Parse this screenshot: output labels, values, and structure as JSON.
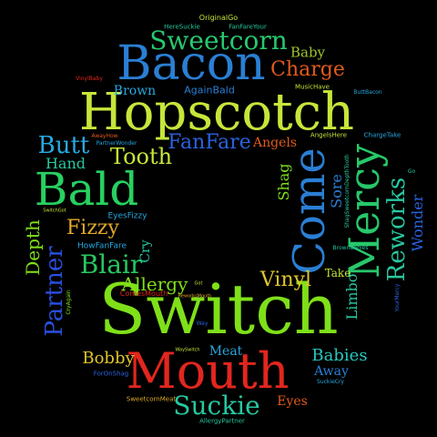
{
  "words": [
    {
      "text": "Switch",
      "color": "#7fe019"
    },
    {
      "text": "Hopscotch",
      "color": "#c6e63a"
    },
    {
      "text": "Mouth",
      "color": "#e2261e"
    },
    {
      "text": "Bacon",
      "color": "#2a7fd4"
    },
    {
      "text": "Bald",
      "color": "#27d160"
    },
    {
      "text": "Come",
      "color": "#2a7fd4"
    },
    {
      "text": "Mercy",
      "color": "#27c86a"
    },
    {
      "text": "Sweetcorn",
      "color": "#27c870"
    },
    {
      "text": "Charge",
      "color": "#e05a1e"
    },
    {
      "text": "Suckie",
      "color": "#27c8a0"
    },
    {
      "text": "Butt",
      "color": "#27a8e0"
    },
    {
      "text": "Tooth",
      "color": "#c6e63a"
    },
    {
      "text": "FanFare",
      "color": "#2a62e0"
    },
    {
      "text": "Reworks",
      "color": "#27c8a0"
    },
    {
      "text": "Partner",
      "color": "#2a4fe0"
    },
    {
      "text": "Blair",
      "color": "#27c860"
    },
    {
      "text": "Vinyl",
      "color": "#e0c62a"
    },
    {
      "text": "Allergy",
      "color": "#7fe019"
    },
    {
      "text": "Fizzy",
      "color": "#e0a82a"
    },
    {
      "text": "Depth",
      "color": "#7fe019"
    },
    {
      "text": "Bobby",
      "color": "#e0c62a"
    },
    {
      "text": "Babies",
      "color": "#27c8c0"
    },
    {
      "text": "Hand",
      "color": "#27c8a0"
    },
    {
      "text": "Brown",
      "color": "#27a8e0"
    },
    {
      "text": "Baby",
      "color": "#a0c62a"
    },
    {
      "text": "Wonder",
      "color": "#2a62e0"
    },
    {
      "text": "Limbo",
      "color": "#27c8a0"
    },
    {
      "text": "Shag",
      "color": "#7fe019"
    },
    {
      "text": "Sore",
      "color": "#2a7fd4"
    },
    {
      "text": "Eyes",
      "color": "#e05a1e"
    },
    {
      "text": "Away",
      "color": "#2a7fd4"
    },
    {
      "text": "Angels",
      "color": "#e05a1e"
    },
    {
      "text": "Meat",
      "color": "#27a8e0"
    },
    {
      "text": "Cry",
      "color": "#27c8a0"
    },
    {
      "text": "Take",
      "color": "#c6e63a"
    },
    {
      "text": "AgainBald",
      "color": "#2a7fd4"
    },
    {
      "text": "EyesFizzy",
      "color": "#27a8e0"
    },
    {
      "text": "HowFanFare",
      "color": "#27a8e0"
    },
    {
      "text": "ComesMouth",
      "color": "#e2261e"
    },
    {
      "text": "SweetcornMeat",
      "color": "#e0a82a"
    },
    {
      "text": "AllergyPartner",
      "color": "#27c8a0"
    },
    {
      "text": "FanFareYour",
      "color": "#27c8a0"
    },
    {
      "text": "OriginalGo",
      "color": "#c6e63a"
    },
    {
      "text": "HereSuckie",
      "color": "#27c8a0"
    },
    {
      "text": "MusicHave",
      "color": "#c6e63a"
    },
    {
      "text": "AngelsHere",
      "color": "#c6e63a"
    },
    {
      "text": "ChargeTake",
      "color": "#27a8e0"
    },
    {
      "text": "ForOnShag",
      "color": "#2a62e0"
    },
    {
      "text": "BrownBabies",
      "color": "#27c8a0"
    },
    {
      "text": "ShagSweetcornDepthTooth",
      "color": "#27c8a0"
    },
    {
      "text": "VinylBaby",
      "color": "#e2261e"
    },
    {
      "text": "ButtBacon",
      "color": "#27a8e0"
    },
    {
      "text": "AwayHow",
      "color": "#e05a1e"
    },
    {
      "text": "PartnerWonder",
      "color": "#27a8e0"
    },
    {
      "text": "SwitchGot",
      "color": "#c6e63a"
    },
    {
      "text": "CryAgain",
      "color": "#7fe019"
    },
    {
      "text": "ReworksMouth",
      "color": "#e0a82a"
    },
    {
      "text": "WaySwitch",
      "color": "#c6e63a"
    },
    {
      "text": "SuckieCry",
      "color": "#27a8e0"
    },
    {
      "text": "YourMercy",
      "color": "#2a62e0"
    },
    {
      "text": "Way",
      "color": "#2a62e0"
    },
    {
      "text": "Go",
      "color": "#27c8a0"
    },
    {
      "text": "Got",
      "color": "#c6e63a"
    }
  ]
}
